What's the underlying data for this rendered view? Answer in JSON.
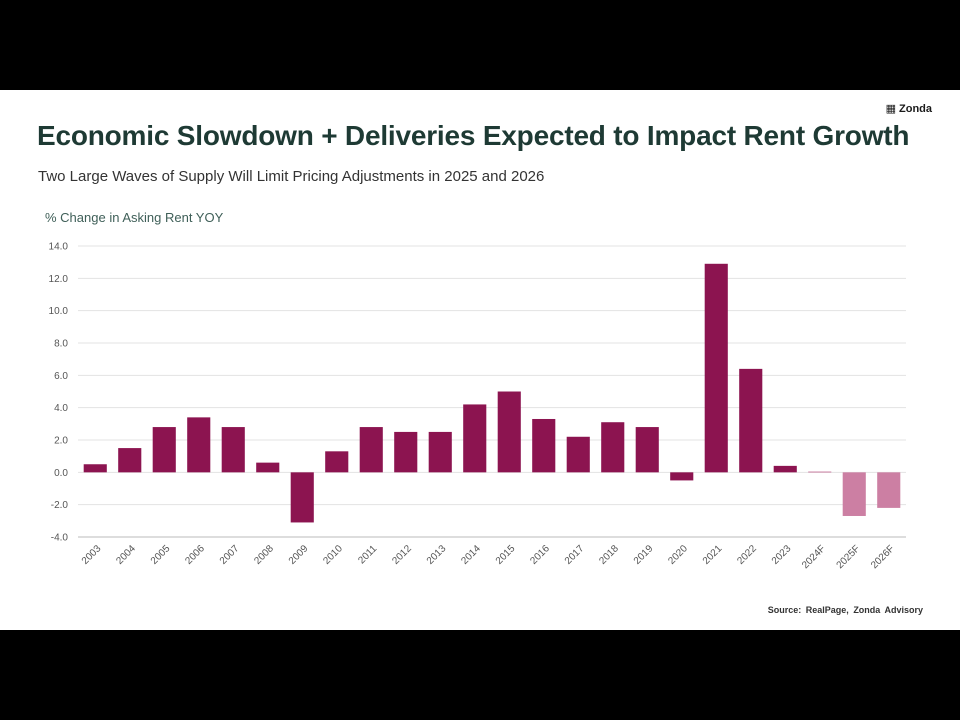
{
  "brand": {
    "icon": "zonda-logo-icon",
    "name": "Zonda"
  },
  "header": {
    "title": "Economic Slowdown + Deliveries Expected to Impact Rent Growth",
    "subtitle": "Two Large Waves of Supply Will Limit Pricing Adjustments in 2025 and 2026"
  },
  "source": "Source: RealPage, Zonda Advisory",
  "colors": {
    "actual": "#8c1450",
    "forecast": "#cc7fa3",
    "axis_title": "#3f5f58",
    "title": "#1e3a34"
  },
  "chart_data": {
    "type": "bar",
    "title": "Economic Slowdown + Deliveries Expected to Impact Rent Growth",
    "ylabel": "% Change in Asking Rent YOY",
    "xlabel": "",
    "ylim": [
      -4.0,
      14.0
    ],
    "yticks": [
      "14.0",
      "12.0",
      "10.0",
      "8.0",
      "6.0",
      "4.0",
      "2.0",
      "0.0",
      "-2.0",
      "-4.0"
    ],
    "ytick_values": [
      14,
      12,
      10,
      8,
      6,
      4,
      2,
      0,
      -2,
      -4
    ],
    "grid": true,
    "categories": [
      "2003",
      "2004",
      "2005",
      "2006",
      "2007",
      "2008",
      "2009",
      "2010",
      "2011",
      "2012",
      "2013",
      "2014",
      "2015",
      "2016",
      "2017",
      "2018",
      "2019",
      "2020",
      "2021",
      "2022",
      "2023",
      "2024F",
      "2025F",
      "2026F"
    ],
    "values": [
      0.5,
      1.5,
      2.8,
      3.4,
      2.8,
      0.6,
      -3.1,
      1.3,
      2.8,
      2.5,
      2.5,
      4.2,
      5.0,
      3.3,
      2.2,
      3.1,
      2.8,
      -0.5,
      12.9,
      6.4,
      0.4,
      0.05,
      -2.7,
      -2.2
    ],
    "forecast": [
      false,
      false,
      false,
      false,
      false,
      false,
      false,
      false,
      false,
      false,
      false,
      false,
      false,
      false,
      false,
      false,
      false,
      false,
      false,
      false,
      false,
      true,
      true,
      true
    ]
  }
}
